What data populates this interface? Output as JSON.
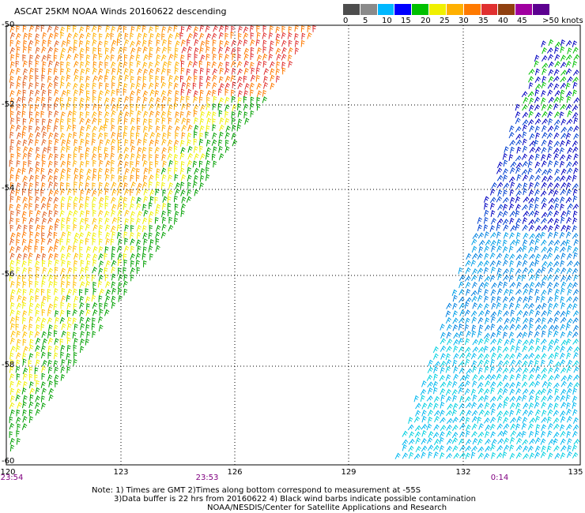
{
  "title": "ASCAT 25KM NOAA Winds 20160622 descending",
  "legend": {
    "colors": [
      "#4d4d4d",
      "#8a8a8a",
      "#00b8ff",
      "#0000ff",
      "#00c000",
      "#f0f000",
      "#ffb000",
      "#ff7a00",
      "#e03030",
      "#904010",
      "#a000a0",
      "#5c0090"
    ],
    "labels": [
      "0",
      "5",
      "10",
      "15",
      "20",
      "25",
      "30",
      "35",
      "40",
      "45",
      ">50 knots"
    ]
  },
  "map": {
    "lat_labels": [
      "-50",
      "-52",
      "-54",
      "-56",
      "-58",
      "-60"
    ],
    "lon_labels": [
      "120",
      "123",
      "126",
      "129",
      "132",
      "135"
    ],
    "time_labels": [
      "23:54",
      "23:53",
      "0:14"
    ]
  },
  "notes": {
    "line1": "Note: 1) Times are GMT 2)Times along bottom correspond to measurement at -55S",
    "line2": "3)Data buffer is 22 hrs from 20160622 4) Black wind barbs indicate possible contamination",
    "line3": "NOAA/NESDIS/Center for Satellite Applications and Research"
  }
}
